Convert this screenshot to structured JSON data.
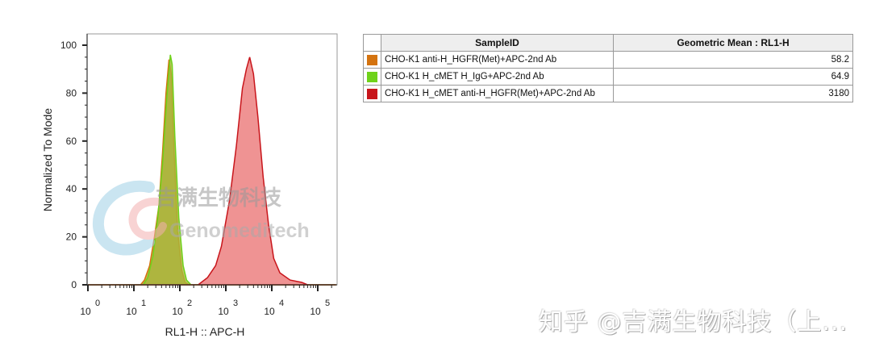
{
  "chart_data": {
    "type": "area",
    "xlabel": "RL1-H :: APC-H",
    "ylabel": "Normalized To Mode",
    "x_scale": "log",
    "xlim": [
      1,
      250000
    ],
    "ylim": [
      0,
      106
    ],
    "x_ticks": [
      {
        "base": "10",
        "exp": "0",
        "value": 1
      },
      {
        "base": "10",
        "exp": "1",
        "value": 10
      },
      {
        "base": "10",
        "exp": "2",
        "value": 100
      },
      {
        "base": "10",
        "exp": "3",
        "value": 1000
      },
      {
        "base": "10",
        "exp": "4",
        "value": 10000
      },
      {
        "base": "10",
        "exp": "5",
        "value": 100000
      }
    ],
    "y_ticks": [
      0,
      20,
      40,
      60,
      80,
      100
    ],
    "grid": false,
    "series": [
      {
        "name": "CHO-K1 anti-H_HGFR(Met)+APC-2nd Ab",
        "color": "#d4730f",
        "fill": "#b8962e",
        "x": [
          1,
          14,
          17,
          22,
          28,
          35,
          42,
          50,
          58,
          65,
          75,
          90,
          110,
          130,
          160,
          250000
        ],
        "y": [
          0,
          0,
          2,
          8,
          20,
          33,
          55,
          80,
          94,
          88,
          55,
          22,
          6,
          1,
          0,
          0
        ]
      },
      {
        "name": "CHO-K1 H_cMET H_IgG+APC-2nd Ab",
        "color": "#6fd21a",
        "fill": "#a7b83a",
        "x": [
          1,
          16,
          20,
          26,
          33,
          42,
          52,
          62,
          68,
          78,
          95,
          118,
          140,
          175,
          250000
        ],
        "y": [
          0,
          0,
          3,
          12,
          28,
          50,
          78,
          96,
          92,
          62,
          28,
          8,
          2,
          0,
          0
        ]
      },
      {
        "name": "CHO-K1 H_cMET anti-H_HGFR(Met)+APC-2nd Ab",
        "color": "#c8151b",
        "fill": "#ec8080",
        "x": [
          1,
          250,
          400,
          600,
          800,
          1200,
          1700,
          2300,
          2800,
          3300,
          4000,
          5000,
          6500,
          8500,
          11000,
          15000,
          25000,
          45000,
          60000,
          250000
        ],
        "y": [
          0,
          0,
          3,
          8,
          16,
          35,
          58,
          82,
          90,
          95,
          88,
          70,
          45,
          25,
          11,
          5,
          2,
          1,
          0,
          0
        ]
      }
    ]
  },
  "table": {
    "headers": [
      "SampleID",
      "Geometric Mean : RL1-H"
    ],
    "rows": [
      {
        "color": "#d4730f",
        "sample": "CHO-K1 anti-H_HGFR(Met)+APC-2nd Ab",
        "mean": "58.2"
      },
      {
        "color": "#6fd21a",
        "sample": "CHO-K1 H_cMET H_IgG+APC-2nd Ab",
        "mean": "64.9"
      },
      {
        "color": "#c8151b",
        "sample": "CHO-K1 H_cMET anti-H_HGFR(Met)+APC-2nd Ab",
        "mean": "3180"
      }
    ]
  },
  "watermark": {
    "logo_cn": "吉满生物科技",
    "logo_en": "Genomeditech",
    "zhihu": "知乎 @吉满生物科技（上..."
  }
}
